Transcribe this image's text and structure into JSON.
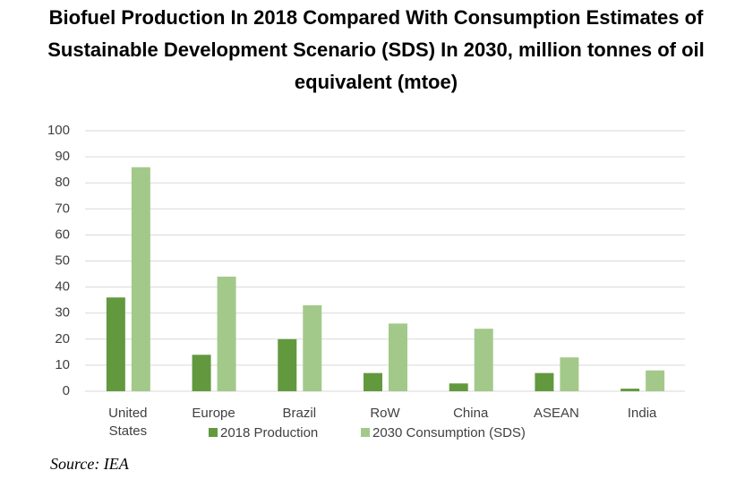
{
  "chart_data": {
    "type": "bar",
    "title": "Biofuel Production In 2018 Compared With Consumption Estimates of Sustainable Development Scenario (SDS) In 2030, million tonnes of oil equivalent (mtoe)",
    "categories": [
      "United States",
      "Europe",
      "Brazil",
      "RoW",
      "China",
      "ASEAN",
      "India"
    ],
    "series": [
      {
        "name": "2018 Production",
        "color": "#62993e",
        "values": [
          36,
          14,
          20,
          7,
          3,
          7,
          1
        ]
      },
      {
        "name": "2030 Consumption (SDS)",
        "color": "#a3c98a",
        "values": [
          86,
          44,
          33,
          26,
          24,
          13,
          8
        ]
      }
    ],
    "ylim": [
      0,
      100
    ],
    "yticks": [
      0,
      10,
      20,
      30,
      40,
      50,
      60,
      70,
      80,
      90,
      100
    ],
    "grid": true,
    "source": "Source: IEA"
  }
}
